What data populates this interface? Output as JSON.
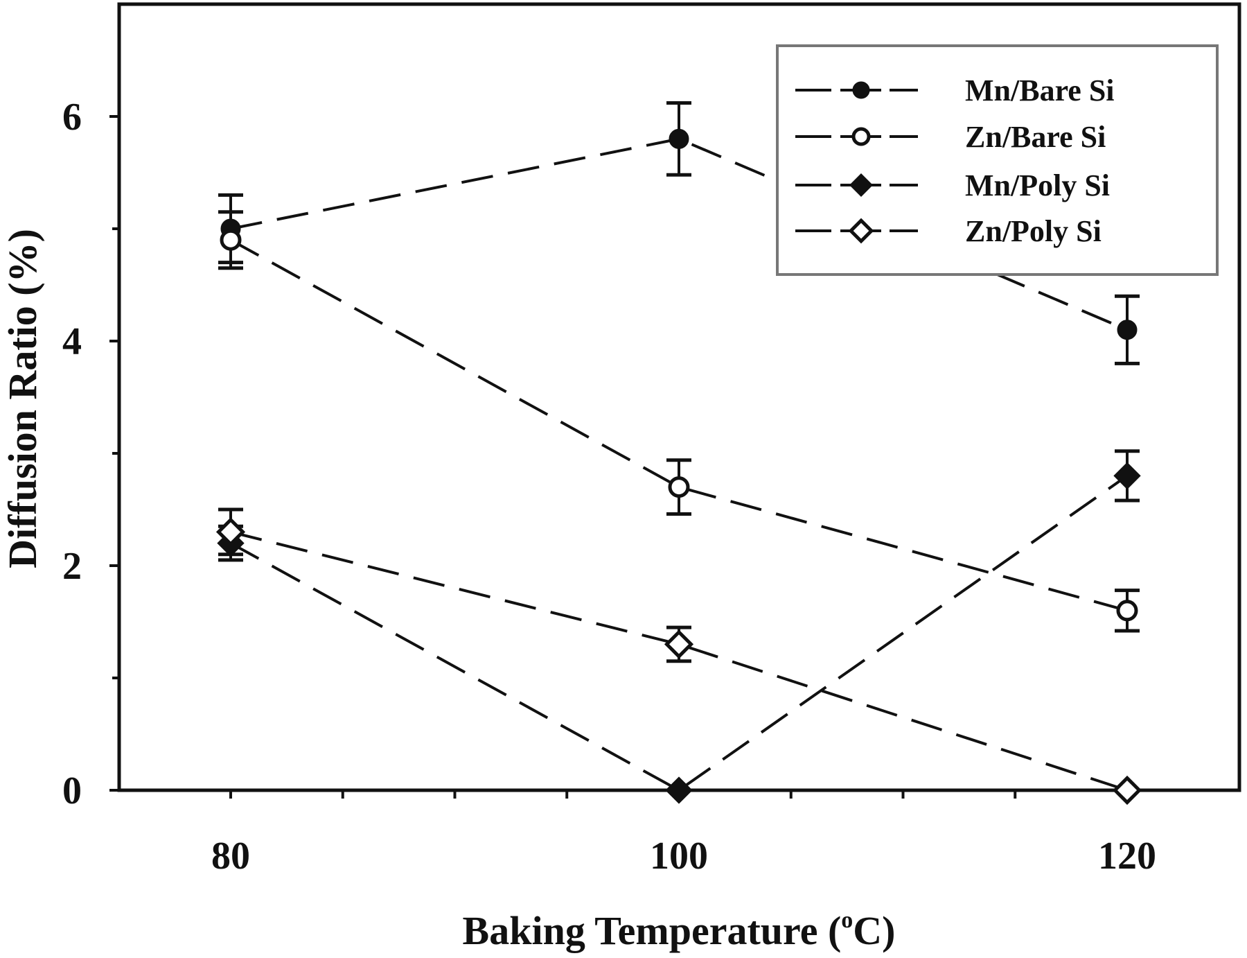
{
  "chart_data": {
    "type": "line",
    "title": "",
    "xlabel": "Baking Temperature (°C)",
    "ylabel": "Diffusion Ratio (%)",
    "x": [
      80,
      100,
      120
    ],
    "xticks": [
      "80",
      "100",
      "120"
    ],
    "yticks": [
      "0",
      "2",
      "4",
      "6"
    ],
    "xlim": [
      75,
      125
    ],
    "ylim": [
      0,
      7
    ],
    "grid": false,
    "legend_position": "upper right",
    "series": [
      {
        "name": "Mn/Bare Si",
        "marker": "filled-circle",
        "line": "dashed",
        "values": [
          5.0,
          5.8,
          4.1
        ],
        "errors": [
          0.3,
          0.32,
          0.3
        ]
      },
      {
        "name": "Zn/Bare Si",
        "marker": "open-circle",
        "line": "dashed",
        "values": [
          4.9,
          2.7,
          1.6
        ],
        "errors": [
          0.25,
          0.24,
          0.18
        ]
      },
      {
        "name": "Mn/Poly Si",
        "marker": "filled-diamond",
        "line": "dashed",
        "values": [
          2.2,
          0.0,
          2.8
        ],
        "errors": [
          0.15,
          0,
          0.22
        ]
      },
      {
        "name": "Zn/Poly Si",
        "marker": "open-diamond",
        "line": "dashed",
        "values": [
          2.3,
          1.3,
          0.0
        ],
        "errors": [
          0.2,
          0.15,
          0
        ]
      }
    ]
  },
  "labels": {
    "xlabel_main": "Baking Temperature (",
    "xlabel_sup": "o",
    "xlabel_end": "C)",
    "ylabel": "Diffusion Ratio (%)"
  },
  "colors": {
    "line": "#111111",
    "background": "#ffffff",
    "legend_border": "#777777"
  }
}
